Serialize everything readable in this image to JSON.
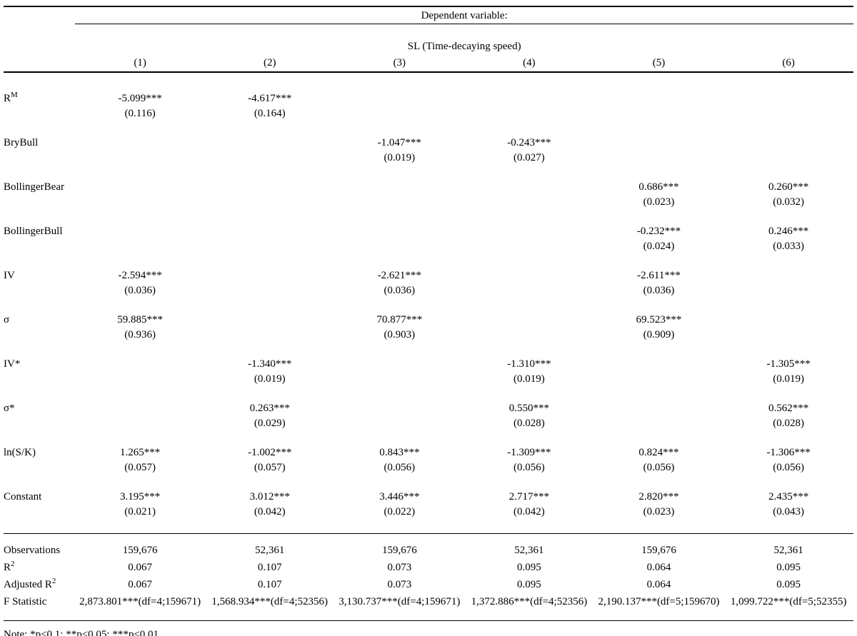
{
  "table": {
    "header": {
      "dependent_variable_label": "Dependent variable:",
      "dependent_variable_name": "SL (Time-decaying speed)",
      "column_numbers": [
        "(1)",
        "(2)",
        "(3)",
        "(4)",
        "(5)",
        "(6)"
      ]
    },
    "rows": [
      {
        "label_base": "R",
        "label_sup": "M",
        "coefs": [
          "-5.099***",
          "-4.617***",
          "",
          "",
          "",
          ""
        ],
        "ses": [
          "(0.116)",
          "(0.164)",
          "",
          "",
          "",
          ""
        ]
      },
      {
        "label_base": "BryBull",
        "coefs": [
          "",
          "",
          "-1.047***",
          "-0.243***",
          "",
          ""
        ],
        "ses": [
          "",
          "",
          "(0.019)",
          "(0.027)",
          "",
          ""
        ]
      },
      {
        "label_base": "BollingerBear",
        "coefs": [
          "",
          "",
          "",
          "",
          "0.686***",
          "0.260***"
        ],
        "ses": [
          "",
          "",
          "",
          "",
          "(0.023)",
          "(0.032)"
        ]
      },
      {
        "label_base": "BollingerBull",
        "coefs": [
          "",
          "",
          "",
          "",
          "-0.232***",
          "0.246***"
        ],
        "ses": [
          "",
          "",
          "",
          "",
          "(0.024)",
          "(0.033)"
        ]
      },
      {
        "label_base": "IV",
        "coefs": [
          "-2.594***",
          "",
          "-2.621***",
          "",
          "-2.611***",
          ""
        ],
        "ses": [
          "(0.036)",
          "",
          "(0.036)",
          "",
          "(0.036)",
          ""
        ]
      },
      {
        "label_base": "σ",
        "coefs": [
          "59.885***",
          "",
          "70.877***",
          "",
          "69.523***",
          ""
        ],
        "ses": [
          "(0.936)",
          "",
          "(0.903)",
          "",
          "(0.909)",
          ""
        ]
      },
      {
        "label_base": "IV*",
        "coefs": [
          "",
          "-1.340***",
          "",
          "-1.310***",
          "",
          "-1.305***"
        ],
        "ses": [
          "",
          "(0.019)",
          "",
          "(0.019)",
          "",
          "(0.019)"
        ]
      },
      {
        "label_base": "σ*",
        "coefs": [
          "",
          "0.263***",
          "",
          "0.550***",
          "",
          "0.562***"
        ],
        "ses": [
          "",
          "(0.029)",
          "",
          "(0.028)",
          "",
          "(0.028)"
        ]
      },
      {
        "label_base": "ln(S/K)",
        "coefs": [
          "1.265***",
          "-1.002***",
          "0.843***",
          "-1.309***",
          "0.824***",
          "-1.306***"
        ],
        "ses": [
          "(0.057)",
          "(0.057)",
          "(0.056)",
          "(0.056)",
          "(0.056)",
          "(0.056)"
        ]
      },
      {
        "label_base": "Constant",
        "coefs": [
          "3.195***",
          "3.012***",
          "3.446***",
          "2.717***",
          "2.820***",
          "2.435***"
        ],
        "ses": [
          "(0.021)",
          "(0.042)",
          "(0.022)",
          "(0.042)",
          "(0.023)",
          "(0.043)"
        ]
      }
    ],
    "stats": [
      {
        "label_base": "Observations",
        "values": [
          "159,676",
          "52,361",
          "159,676",
          "52,361",
          "159,676",
          "52,361"
        ]
      },
      {
        "label_base": "R",
        "label_sup": "2",
        "values": [
          "0.067",
          "0.107",
          "0.073",
          "0.095",
          "0.064",
          "0.095"
        ]
      },
      {
        "label_base": "Adjusted R",
        "label_sup": "2",
        "values": [
          "0.067",
          "0.107",
          "0.073",
          "0.095",
          "0.064",
          "0.095"
        ]
      },
      {
        "label_base": "F Statistic",
        "values": [
          "2,873.801***(df=4;159671)",
          "1,568.934***(df=4;52356)",
          "3,130.737***(df=4;159671)",
          "1,372.886***(df=4;52356)",
          "2,190.137***(df=5;159670)",
          "1,099.722***(df=5;52355)"
        ]
      }
    ],
    "note": "Note: *p<0.1; **p<0.05; ***p<0.01"
  }
}
